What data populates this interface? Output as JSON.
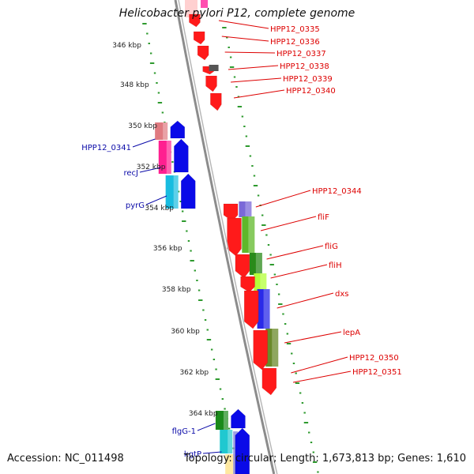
{
  "title": "Helicobacter pylori P12, complete genome",
  "footer": {
    "accession": "Accession: NC_011498",
    "summary": "Topology: circular; Length: 1,673,813 bp; Genes: 1,610"
  },
  "colors": {
    "backbone": "#8c8c8c",
    "tick": "#2e9a2e",
    "forward_label": "#dd0000",
    "reverse_label": "#0a0aa8",
    "kbp_label": "#222222"
  },
  "kbp_ticks": [
    {
      "label": "346 kbp"
    },
    {
      "label": "348 kbp"
    },
    {
      "label": "350 kbp"
    },
    {
      "label": "352 kbp"
    },
    {
      "label": "354 kbp"
    },
    {
      "label": "356 kbp"
    },
    {
      "label": "358 kbp"
    },
    {
      "label": "360 kbp"
    },
    {
      "label": "362 kbp"
    },
    {
      "label": "364 kbp"
    }
  ],
  "forward_genes": [
    {
      "label": "HPP12_0335"
    },
    {
      "label": "HPP12_0336"
    },
    {
      "label": "HPP12_0337"
    },
    {
      "label": "HPP12_0338"
    },
    {
      "label": "HPP12_0339"
    },
    {
      "label": "HPP12_0340"
    },
    {
      "label": "HPP12_0344"
    },
    {
      "label": "fliF"
    },
    {
      "label": "fliG"
    },
    {
      "label": "fliH"
    },
    {
      "label": "dxs"
    },
    {
      "label": "lepA"
    },
    {
      "label": "HPP12_0350"
    },
    {
      "label": "HPP12_0351"
    }
  ],
  "reverse_genes": [
    {
      "label": "HPP12_0341"
    },
    {
      "label": "recJ"
    },
    {
      "label": "pyrG"
    },
    {
      "label": "flgG-1"
    },
    {
      "label": "kgtP"
    }
  ]
}
